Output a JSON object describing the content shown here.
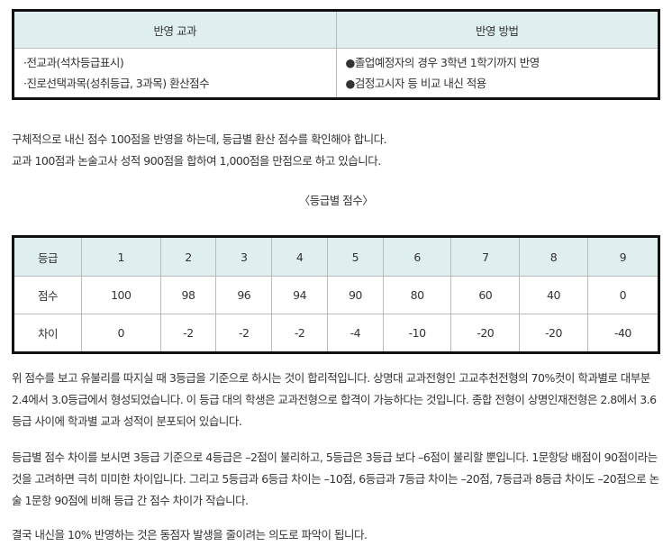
{
  "table1": {
    "headers": [
      "반영 교과",
      "반영 방법"
    ],
    "left": [
      "·전교과(석차등급표시)",
      "·진로선택과목(성취등급, 3과목) 환산점수"
    ],
    "right": [
      "●졸업예정자의 경우 3학년 1학기까지 반영",
      "●검정고시자 등 비교 내신 적용"
    ]
  },
  "intro": [
    "구체적으로 내신 점수 100점을 반영을 하는데, 등급별 환산 점수를 확인해야 합니다.",
    "교과 100점과 논술고사 성적 900점을 합하여 1,000점을 만점으로 하고 있습니다."
  ],
  "caption": "〈등급별 점수〉",
  "table2": {
    "rows": [
      [
        "등급",
        "1",
        "2",
        "3",
        "4",
        "5",
        "6",
        "7",
        "8",
        "9"
      ],
      [
        "점수",
        "100",
        "98",
        "96",
        "94",
        "90",
        "80",
        "60",
        "40",
        "0"
      ],
      [
        "차이",
        "0",
        "-2",
        "-2",
        "-2",
        "-4",
        "-10",
        "-20",
        "-20",
        "-40"
      ]
    ]
  },
  "paragraphs": [
    " 위 점수를 보고 유불리를 따지실 때 3등급을 기준으로 하시는 것이 합리적입니다. 상명대 교과전형인 고교추천전형의 70%컷이 학과별로 대부분 2.4에서 3.0등급에서 형성되었습니다. 이 등급 대의 학생은 교과전형으로 합격이 가능하다는 것입니다. 종합 전형이 상명인재전형은 2.8에서 3.6등급 사이에 학과별 교과 성적이 분포되어 있습니다.",
    "등급별 점수 차이를 보시면 3등급 기준으로 4등급은 –2점이 불리하고, 5등급은 3등급 보다 –6점이 불리할 뿐입니다. 1문항당 배점이 90점이라는 것을 고려하면 극히 미미한 차이입니다. 그리고 5등급과 6등급 차이는 –10점, 6등급과 7등급 차이는 –20점, 7등급과 8등급 차이도 –20점으로 논술 1문항 90점에 비해 등급 간 점수 차이가 작습니다.",
    "결국 내신을 10% 반영하는 것은 동점자 발생을 줄이려는 의도로 파악이 됩니다."
  ]
}
